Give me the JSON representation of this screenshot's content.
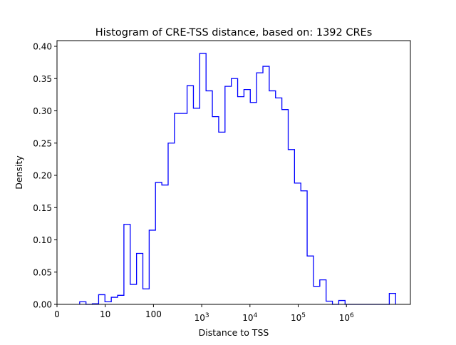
{
  "chart_data": {
    "type": "histogram-step",
    "title": "Histogram of CRE-TSS distance, based on: 1392 CREs",
    "xlabel": "Distance to TSS",
    "ylabel": "Density",
    "x_scale": "log10(distance), decades",
    "bin_range_log10": [
      0.47,
      7.02
    ],
    "ylim": [
      0,
      0.41
    ],
    "xlim_log10": [
      0,
      7.32
    ],
    "line_color": "#0000ff",
    "x_ticks": [
      {
        "pos": 0,
        "base": "0",
        "exp": ""
      },
      {
        "pos": 1,
        "base": "10",
        "exp": ""
      },
      {
        "pos": 2,
        "base": "100",
        "exp": ""
      },
      {
        "pos": 3,
        "base": "10",
        "exp": "3"
      },
      {
        "pos": 4,
        "base": "10",
        "exp": "4"
      },
      {
        "pos": 5,
        "base": "10",
        "exp": "5"
      },
      {
        "pos": 6,
        "base": "10",
        "exp": "6"
      }
    ],
    "y_ticks": [
      "0.00",
      "0.05",
      "0.10",
      "0.15",
      "0.20",
      "0.25",
      "0.30",
      "0.35",
      "0.40"
    ],
    "values": [
      0.004,
      0,
      0.001,
      0.015,
      0.004,
      0.011,
      0.014,
      0.124,
      0.031,
      0.079,
      0.024,
      0.115,
      0.189,
      0.185,
      0.25,
      0.296,
      0.296,
      0.339,
      0.304,
      0.389,
      0.331,
      0.291,
      0.267,
      0.338,
      0.35,
      0.322,
      0.333,
      0.313,
      0.359,
      0.369,
      0.331,
      0.32,
      0.302,
      0.24,
      0.188,
      0.176,
      0.075,
      0.028,
      0.038,
      0.005,
      0,
      0.006,
      0,
      0,
      0,
      0,
      0,
      0,
      0,
      0.017
    ]
  }
}
